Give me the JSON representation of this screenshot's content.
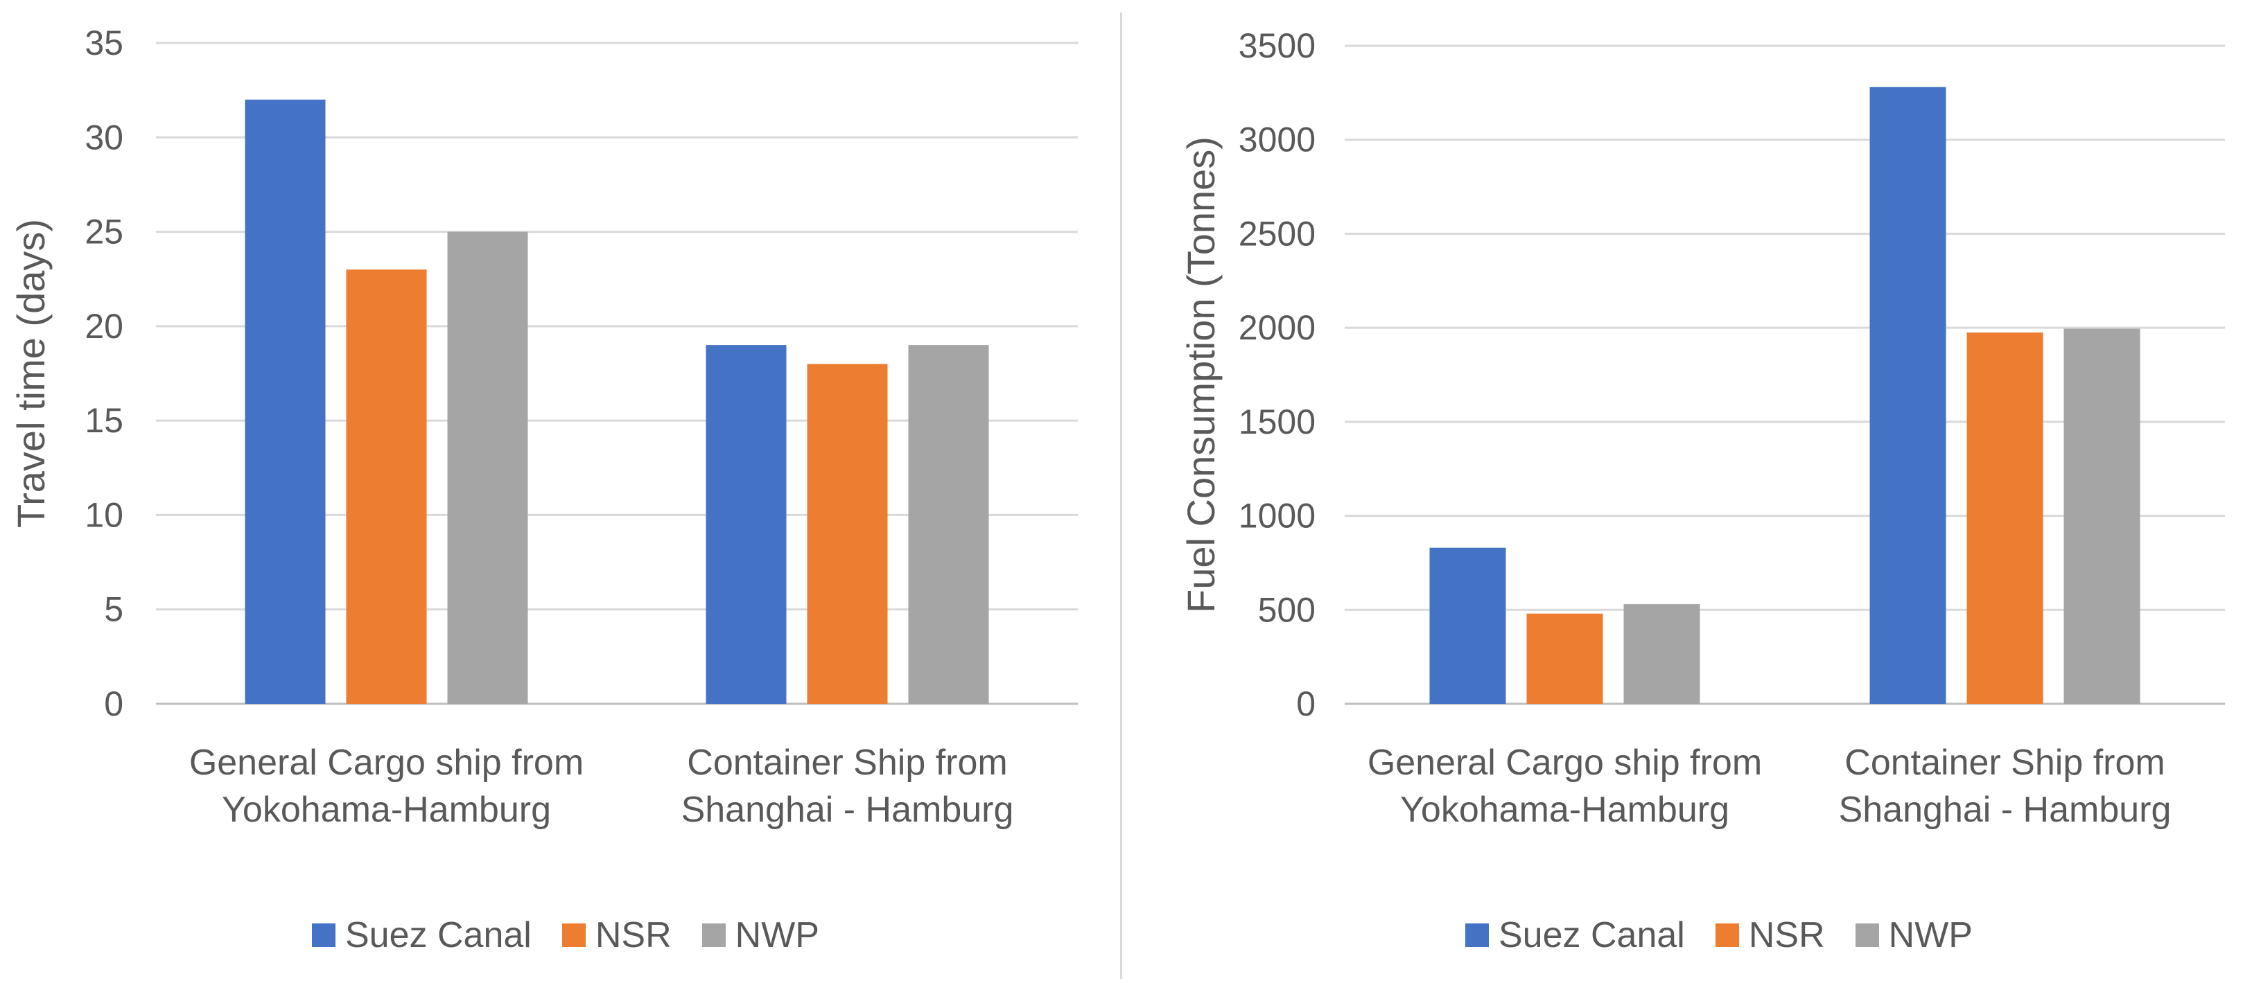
{
  "chart_data": [
    {
      "type": "bar",
      "ylabel": "Travel time (days)",
      "xlabel": "",
      "ylim": [
        0,
        35
      ],
      "yticks": [
        0,
        5,
        10,
        15,
        20,
        25,
        30,
        35
      ],
      "grid": true,
      "legend_position": "bottom",
      "categories": [
        [
          "General Cargo ship from",
          "Yokohama-Hamburg"
        ],
        [
          "Container Ship from",
          "Shanghai - Hamburg"
        ]
      ],
      "series": [
        {
          "name": "Suez Canal",
          "color": "#4472c4",
          "values": [
            32,
            19
          ]
        },
        {
          "name": "NSR",
          "color": "#ed7d31",
          "values": [
            23,
            18
          ]
        },
        {
          "name": "NWP",
          "color": "#a5a5a5",
          "values": [
            25,
            19
          ]
        }
      ]
    },
    {
      "type": "bar",
      "ylabel": "Fuel Consumption (Tonnes)",
      "xlabel": "",
      "ylim": [
        0,
        3500
      ],
      "yticks": [
        0,
        500,
        1000,
        1500,
        2000,
        2500,
        3000,
        3500
      ],
      "grid": true,
      "legend_position": "bottom",
      "categories": [
        [
          "General Cargo ship from",
          "Yokohama-Hamburg"
        ],
        [
          "Container Ship from",
          "Shanghai - Hamburg"
        ]
      ],
      "series": [
        {
          "name": "Suez Canal",
          "color": "#4472c4",
          "values": [
            830,
            3280
          ]
        },
        {
          "name": "NSR",
          "color": "#ed7d31",
          "values": [
            480,
            1975
          ]
        },
        {
          "name": "NWP",
          "color": "#a5a5a5",
          "values": [
            530,
            1995
          ]
        }
      ]
    }
  ]
}
